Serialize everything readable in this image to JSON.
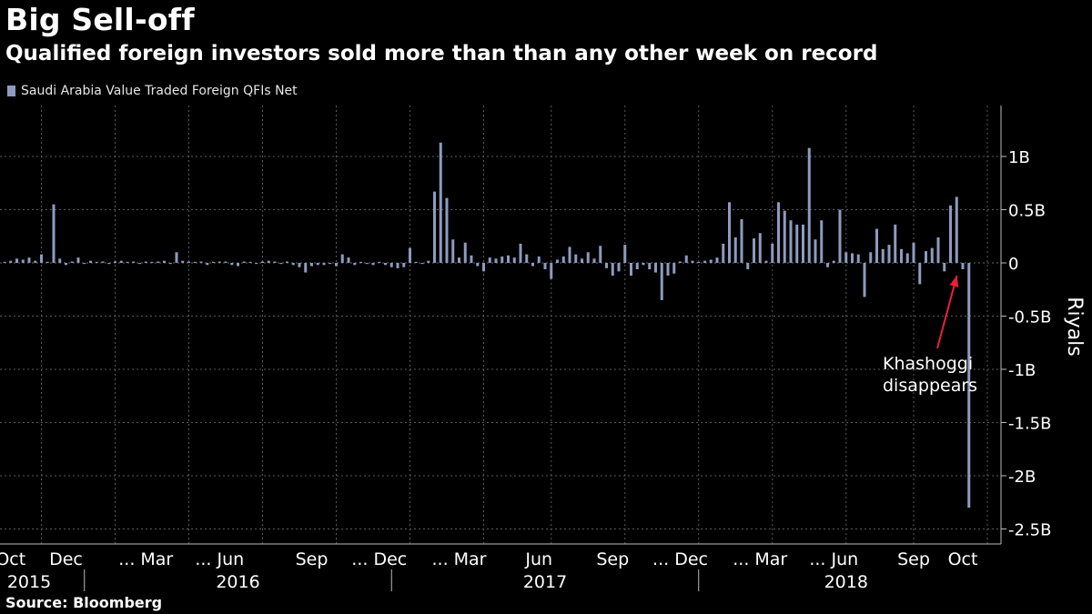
{
  "header": {
    "title": "Big Sell-off",
    "subtitle": "Qualified foreign investors sold more than than any other week on record"
  },
  "legend": {
    "label": "Saudi Arabia Value Traded Foreign QFIs Net"
  },
  "footer": {
    "source": "Source: Bloomberg"
  },
  "colors": {
    "background": "#000000",
    "bar": "#8e9bbf",
    "grid": "#5a5a5a",
    "annotation": "#e8203a",
    "text": "#ffffff"
  },
  "chart_data": {
    "type": "bar",
    "title": "Big Sell-off",
    "subtitle": "Qualified foreign investors sold more than than any other week on record",
    "ylabel": "Riyals",
    "xlabel": "",
    "unit": "billion riyals",
    "ylim": [
      -2.5,
      1.5
    ],
    "grid": true,
    "legend_position": "top-left",
    "y_ticks": [
      {
        "value": 1,
        "label": "1B"
      },
      {
        "value": 0.5,
        "label": "0.5B"
      },
      {
        "value": 0,
        "label": "0"
      },
      {
        "value": -0.5,
        "label": "-0.5B"
      },
      {
        "value": -1,
        "label": "-1B"
      },
      {
        "value": -1.5,
        "label": "-1.5B"
      },
      {
        "value": -2,
        "label": "-2B"
      },
      {
        "value": -2.5,
        "label": "-2.5B"
      }
    ],
    "x_index_range": [
      0,
      158
    ],
    "x_month_labels": [
      {
        "label": "Oct",
        "index": 1
      },
      {
        "label": "Dec",
        "index": 10
      },
      {
        "label": "... Mar",
        "index": 23
      },
      {
        "label": "... Jun",
        "index": 35
      },
      {
        "label": "Sep",
        "index": 50
      },
      {
        "label": "... Dec",
        "index": 61
      },
      {
        "label": "... Mar",
        "index": 74
      },
      {
        "label": "Jun",
        "index": 87
      },
      {
        "label": "Sep",
        "index": 99
      },
      {
        "label": "... Dec",
        "index": 110
      },
      {
        "label": "... Mar",
        "index": 123
      },
      {
        "label": "... Jun",
        "index": 135
      },
      {
        "label": "Sep",
        "index": 148
      },
      {
        "label": "Oct",
        "index": 156
      }
    ],
    "x_year_labels": [
      {
        "label": "2015",
        "index": 4
      },
      {
        "label": "2016",
        "index": 38
      },
      {
        "label": "2017",
        "index": 88
      },
      {
        "label": "2018",
        "index": 137
      }
    ],
    "year_separators": [
      13,
      63,
      113
    ],
    "vertical_gridlines": [
      6,
      18,
      30,
      42,
      54,
      66,
      78,
      89,
      101,
      113,
      125,
      137,
      148,
      160
    ],
    "series": [
      {
        "name": "Saudi Arabia Value Traded Foreign QFIs Net",
        "values": [
          0.01,
          0.02,
          0.04,
          0.03,
          0.05,
          0.02,
          0.08,
          0.01,
          0.55,
          0.04,
          -0.02,
          0.0,
          0.05,
          -0.01,
          0.02,
          0.01,
          0.0,
          -0.01,
          0.0,
          0.02,
          0.01,
          0.0,
          -0.01,
          0.0,
          0.01,
          0.0,
          0.02,
          -0.01,
          0.1,
          0.02,
          0.0,
          0.01,
          0.0,
          -0.02,
          0.01,
          0.0,
          0.0,
          -0.02,
          -0.03,
          0.0,
          0.01,
          -0.01,
          0.0,
          0.02,
          0.0,
          -0.01,
          0.0,
          -0.02,
          -0.04,
          -0.09,
          -0.03,
          -0.02,
          -0.02,
          -0.01,
          -0.03,
          0.08,
          0.05,
          -0.02,
          0.01,
          -0.01,
          -0.02,
          0.01,
          -0.02,
          -0.04,
          -0.05,
          -0.04,
          0.14,
          0.01,
          -0.01,
          0.02,
          0.67,
          1.13,
          0.61,
          0.22,
          0.05,
          0.19,
          0.07,
          -0.03,
          -0.08,
          0.05,
          0.04,
          0.06,
          0.07,
          0.05,
          0.18,
          0.08,
          -0.03,
          0.06,
          -0.06,
          -0.15,
          0.03,
          0.06,
          0.15,
          0.08,
          0.04,
          0.1,
          0.04,
          0.16,
          -0.05,
          -0.12,
          -0.08,
          0.17,
          -0.12,
          -0.06,
          -0.02,
          -0.06,
          -0.09,
          -0.35,
          -0.12,
          -0.1,
          0.0,
          0.07,
          0.02,
          0.01,
          0.02,
          0.03,
          0.05,
          0.18,
          0.57,
          0.24,
          0.41,
          -0.06,
          0.23,
          0.28,
          0.02,
          0.18,
          0.57,
          0.49,
          0.4,
          0.36,
          0.36,
          1.08,
          0.22,
          0.4,
          -0.04,
          0.02,
          0.5,
          0.1,
          0.09,
          0.08,
          -0.32,
          0.1,
          0.32,
          0.13,
          0.17,
          0.36,
          0.13,
          0.09,
          0.19,
          -0.2,
          0.11,
          0.14,
          0.24,
          -0.08,
          0.54,
          0.62,
          -0.06,
          -2.3
        ]
      }
    ],
    "annotations": [
      {
        "text_lines": [
          "Khashoggi",
          "disappears"
        ],
        "points_to_index": 158
      }
    ]
  }
}
